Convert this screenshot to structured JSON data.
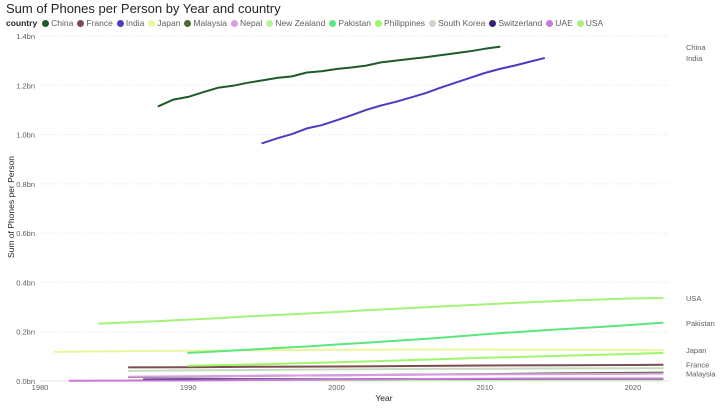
{
  "chart_data": {
    "type": "line",
    "title": "Sum of Phones per Person by Year and country",
    "legend_title": "country",
    "xlabel": "Year",
    "ylabel": "Sum of Phones per Person",
    "xlim": [
      1980,
      2022.5
    ],
    "ylim": [
      0,
      1.4
    ],
    "x_ticks": [
      {
        "value": 1980,
        "label": "1980"
      },
      {
        "value": 1990,
        "label": "1990"
      },
      {
        "value": 2000,
        "label": "2000"
      },
      {
        "value": 2010,
        "label": "2010"
      },
      {
        "value": 2020,
        "label": "2020"
      }
    ],
    "y_ticks": [
      {
        "value": 0,
        "label": "0.0bn"
      },
      {
        "value": 0.2,
        "label": "0.2bn"
      },
      {
        "value": 0.4,
        "label": "0.4bn"
      },
      {
        "value": 0.6,
        "label": "0.6bn"
      },
      {
        "value": 0.8,
        "label": "0.8bn"
      },
      {
        "value": 1.0,
        "label": "1.0bn"
      },
      {
        "value": 1.2,
        "label": "1.2bn"
      },
      {
        "value": 1.4,
        "label": "1.4bn"
      }
    ],
    "grid": "horizontal dotted",
    "legend_position": "top",
    "series": [
      {
        "name": "China",
        "color": "#1e5b2a",
        "end_label": "China",
        "x": [
          1988,
          1989,
          1990,
          1991,
          1992,
          1993,
          1994,
          1995,
          1996,
          1997,
          1998,
          1999,
          2000,
          2001,
          2002,
          2003,
          2004,
          2005,
          2006,
          2007,
          2008,
          2009,
          2010,
          2011
        ],
        "y": [
          1.115,
          1.142,
          1.153,
          1.172,
          1.19,
          1.198,
          1.21,
          1.22,
          1.23,
          1.236,
          1.252,
          1.257,
          1.266,
          1.272,
          1.28,
          1.293,
          1.3,
          1.307,
          1.314,
          1.322,
          1.33,
          1.338,
          1.348,
          1.356
        ]
      },
      {
        "name": "France",
        "color": "#7a4e4e",
        "end_label": "France",
        "x": [
          1986,
          1990,
          1995,
          2000,
          2005,
          2010,
          2015,
          2020,
          2022
        ],
        "y": [
          0.055,
          0.056,
          0.058,
          0.059,
          0.061,
          0.063,
          0.064,
          0.065,
          0.066
        ]
      },
      {
        "name": "India",
        "color": "#5338c2",
        "end_label": "India",
        "x": [
          1995,
          1996,
          1997,
          1998,
          1999,
          2000,
          2001,
          2002,
          2003,
          2004,
          2005,
          2006,
          2007,
          2008,
          2009,
          2010,
          2011,
          2012,
          2013,
          2014
        ],
        "y": [
          0.965,
          0.985,
          1.002,
          1.025,
          1.038,
          1.058,
          1.078,
          1.1,
          1.118,
          1.133,
          1.15,
          1.168,
          1.19,
          1.21,
          1.23,
          1.25,
          1.266,
          1.28,
          1.295,
          1.31
        ]
      },
      {
        "name": "Japan",
        "color": "#ebf59c",
        "end_label": "Japan",
        "x": [
          1981,
          1985,
          1990,
          1995,
          2000,
          2005,
          2010,
          2015,
          2020,
          2022
        ],
        "y": [
          0.118,
          0.121,
          0.123,
          0.125,
          0.127,
          0.128,
          0.128,
          0.127,
          0.126,
          0.125
        ]
      },
      {
        "name": "Malaysia",
        "color": "#4f6b2c",
        "end_label": "Malaysia",
        "x": [
          1986,
          1990,
          1995,
          2000,
          2005,
          2010,
          2015,
          2020,
          2022
        ],
        "y": [
          0.016,
          0.018,
          0.021,
          0.023,
          0.026,
          0.028,
          0.031,
          0.033,
          0.034
        ]
      },
      {
        "name": "Nepal",
        "color": "#dc9be6",
        "end_label": "",
        "x": [
          1986,
          1990,
          1995,
          2000,
          2005,
          2010,
          2015,
          2020,
          2022
        ],
        "y": [
          0.017,
          0.019,
          0.021,
          0.023,
          0.025,
          0.027,
          0.028,
          0.029,
          0.03
        ]
      },
      {
        "name": "New Zealand",
        "color": "#b5f39a",
        "end_label": "",
        "x": [
          1986,
          1990,
          1995,
          2000,
          2005,
          2010,
          2015,
          2020,
          2022
        ],
        "y": [
          0.003,
          0.003,
          0.004,
          0.004,
          0.004,
          0.005,
          0.005,
          0.005,
          0.005
        ]
      },
      {
        "name": "Pakistan",
        "color": "#5de67e",
        "end_label": "Pakistan",
        "x": [
          1990,
          1992,
          1994,
          1996,
          1998,
          2000,
          2002,
          2004,
          2006,
          2008,
          2010,
          2012,
          2014,
          2016,
          2018,
          2020,
          2022
        ],
        "y": [
          0.114,
          0.12,
          0.127,
          0.134,
          0.14,
          0.148,
          0.155,
          0.163,
          0.171,
          0.18,
          0.19,
          0.198,
          0.206,
          0.213,
          0.22,
          0.228,
          0.236
        ]
      },
      {
        "name": "Philippines",
        "color": "#9ef66b",
        "end_label": "",
        "x": [
          1990,
          1995,
          2000,
          2005,
          2010,
          2015,
          2020,
          2022
        ],
        "y": [
          0.062,
          0.068,
          0.076,
          0.085,
          0.094,
          0.102,
          0.11,
          0.114
        ]
      },
      {
        "name": "South Korea",
        "color": "#c8d9c2",
        "end_label": "",
        "x": [
          1986,
          1990,
          1995,
          2000,
          2005,
          2010,
          2015,
          2020,
          2022
        ],
        "y": [
          0.041,
          0.043,
          0.045,
          0.047,
          0.049,
          0.05,
          0.051,
          0.052,
          0.052
        ]
      },
      {
        "name": "Switzerland",
        "color": "#3a1f78",
        "end_label": "",
        "x": [
          1987,
          1990,
          1995,
          2000,
          2005,
          2010,
          2015,
          2020,
          2022
        ],
        "y": [
          0.006,
          0.007,
          0.007,
          0.007,
          0.008,
          0.008,
          0.009,
          0.009,
          0.009
        ]
      },
      {
        "name": "UAE",
        "color": "#c77ad6",
        "end_label": "",
        "x": [
          1982,
          1990,
          1995,
          2000,
          2005,
          2010,
          2015,
          2020,
          2022
        ],
        "y": [
          0.001,
          0.002,
          0.004,
          0.006,
          0.008,
          0.009,
          0.01,
          0.01,
          0.01
        ]
      },
      {
        "name": "USA",
        "color": "#a6f27a",
        "end_label": "USA",
        "x": [
          1984,
          1986,
          1988,
          1990,
          1992,
          1994,
          1996,
          1998,
          2000,
          2002,
          2004,
          2006,
          2008,
          2010,
          2012,
          2014,
          2016,
          2018,
          2020,
          2022
        ],
        "y": [
          0.233,
          0.238,
          0.243,
          0.249,
          0.255,
          0.262,
          0.268,
          0.274,
          0.28,
          0.287,
          0.293,
          0.299,
          0.305,
          0.311,
          0.317,
          0.322,
          0.327,
          0.331,
          0.335,
          0.337
        ]
      }
    ]
  }
}
